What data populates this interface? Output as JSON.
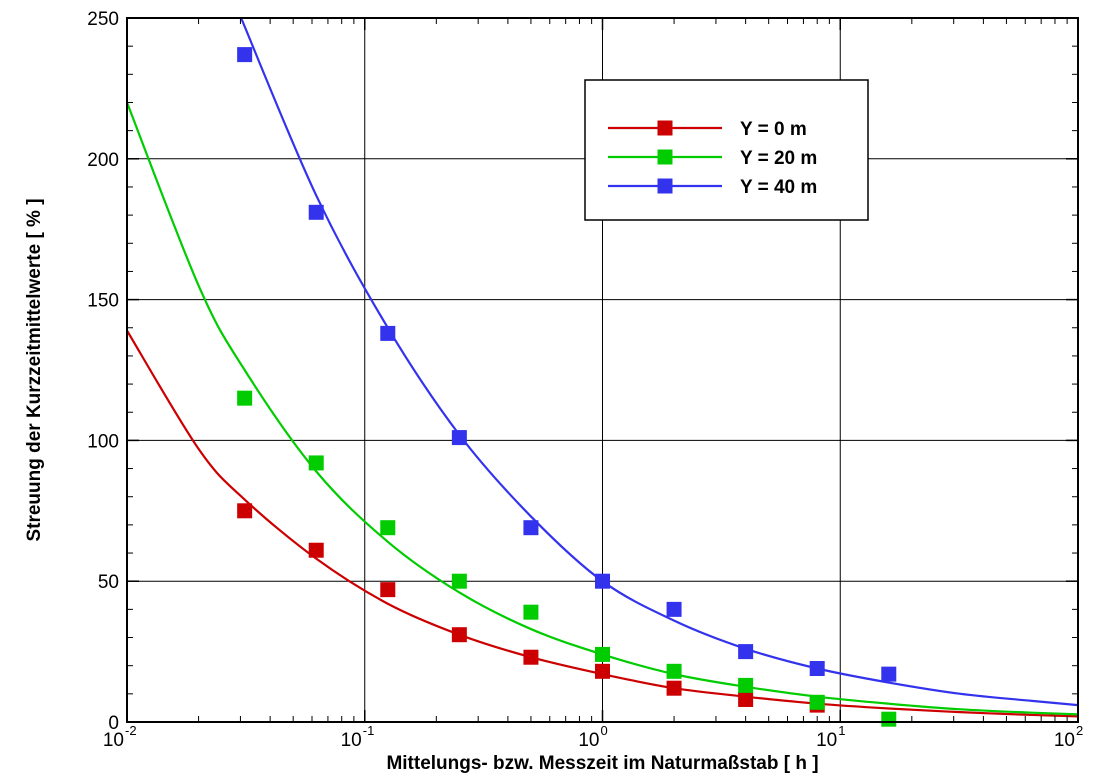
{
  "chart_data": {
    "type": "scatter",
    "title": "",
    "xlabel": "Mittelungs- bzw. Messzeit im Naturmaßstab   [ h ]",
    "ylabel": "Streuung der Kurzzeitmittelwerte    [ % ]",
    "xscale": "log",
    "xlim": [
      0.01,
      100
    ],
    "ylim": [
      0,
      250
    ],
    "grid": true,
    "legend_position": "top-right",
    "x_ticks": [
      {
        "base": "10",
        "exp": "-2",
        "value": 0.01
      },
      {
        "base": "10",
        "exp": "-1",
        "value": 0.1
      },
      {
        "base": "10",
        "exp": "0",
        "value": 1
      },
      {
        "base": "10",
        "exp": "1",
        "value": 10
      },
      {
        "base": "10",
        "exp": "2",
        "value": 100
      }
    ],
    "y_ticks": [
      "0",
      "50",
      "100",
      "150",
      "200",
      "250"
    ],
    "series": [
      {
        "name": "Y = 0 m",
        "color": "#cc0000",
        "points_x": [
          0.03125,
          0.0625,
          0.125,
          0.25,
          0.5,
          1,
          2,
          4,
          8
        ],
        "points_y": [
          75,
          61,
          47,
          31,
          23,
          18,
          12,
          8,
          6
        ],
        "fit_x": [
          0.01,
          0.02,
          0.03125,
          0.0625,
          0.125,
          0.25,
          0.5,
          1,
          2,
          4,
          8,
          16,
          32,
          64,
          100
        ],
        "fit_y": [
          139,
          97,
          79,
          58,
          42,
          31,
          23,
          17,
          12,
          9,
          6.5,
          4.8,
          3.5,
          2.5,
          2
        ]
      },
      {
        "name": "Y = 20 m",
        "color": "#00cc00",
        "points_x": [
          0.03125,
          0.0625,
          0.125,
          0.25,
          0.5,
          1,
          2,
          4,
          8,
          16
        ],
        "points_y": [
          115,
          92,
          69,
          50,
          39,
          24,
          18,
          13,
          7,
          1
        ],
        "fit_x": [
          0.01,
          0.02,
          0.03125,
          0.0625,
          0.125,
          0.25,
          0.5,
          1,
          2,
          4,
          8,
          16,
          32,
          64,
          100
        ],
        "fit_y": [
          220,
          155,
          125,
          89,
          64,
          46,
          33,
          24,
          17,
          12.5,
          9,
          6.5,
          4.5,
          3.3,
          2.7
        ]
      },
      {
        "name": "Y = 40 m",
        "color": "#3333ee",
        "points_x": [
          0.03125,
          0.0625,
          0.125,
          0.25,
          0.5,
          1,
          2,
          4,
          8,
          16
        ],
        "points_y": [
          237,
          181,
          138,
          101,
          69,
          50,
          40,
          25,
          19,
          17
        ],
        "fit_x": [
          0.0302,
          0.0625,
          0.125,
          0.25,
          0.5,
          1,
          2,
          4,
          8,
          16,
          32,
          64,
          100
        ],
        "fit_y": [
          250,
          187,
          140,
          102,
          73,
          50,
          36,
          26,
          19,
          14,
          10,
          7.5,
          6
        ]
      }
    ]
  }
}
